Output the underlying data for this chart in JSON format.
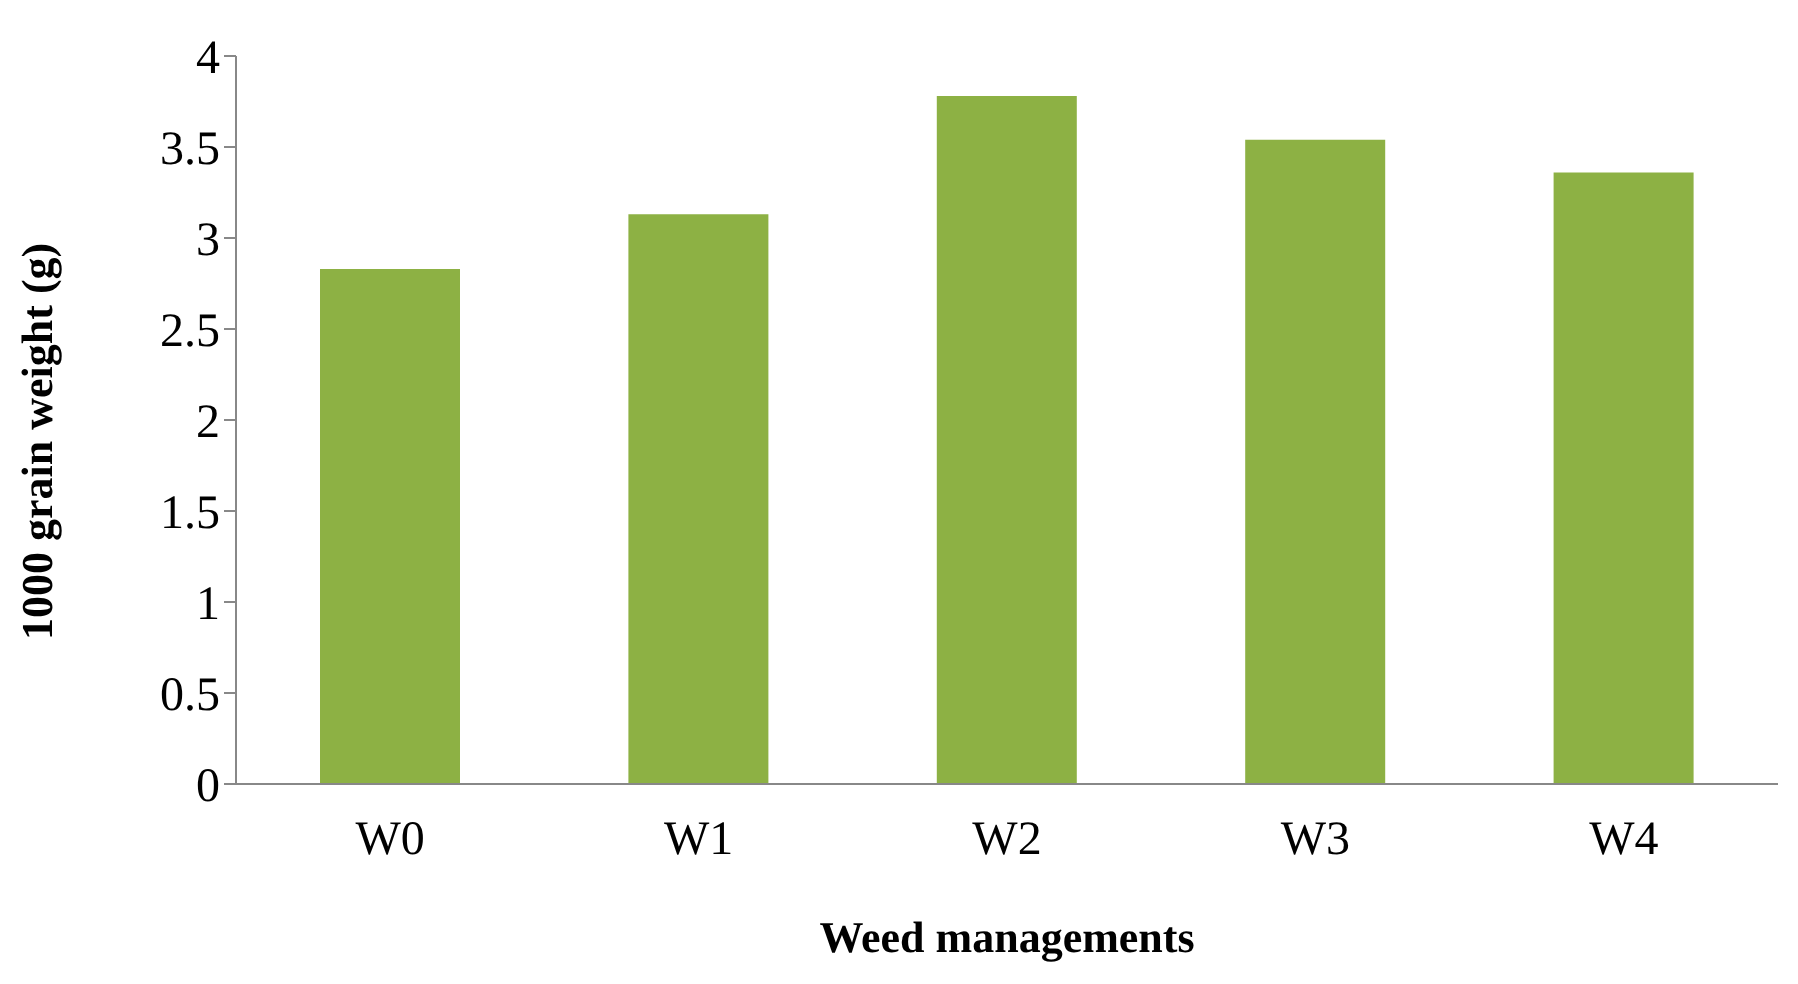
{
  "chart_data": {
    "type": "bar",
    "xlabel": "Weed managements",
    "ylabel": "1000 grain weight (g)",
    "categories": [
      "W0",
      "W1",
      "W2",
      "W3",
      "W4"
    ],
    "values": [
      2.83,
      3.13,
      3.78,
      3.54,
      3.36
    ],
    "color": "#8db144",
    "ylim": [
      0,
      4
    ],
    "yticks": [
      0,
      0.5,
      1,
      1.5,
      2,
      2.5,
      3,
      3.5,
      4
    ],
    "grid": false,
    "legend": false
  }
}
